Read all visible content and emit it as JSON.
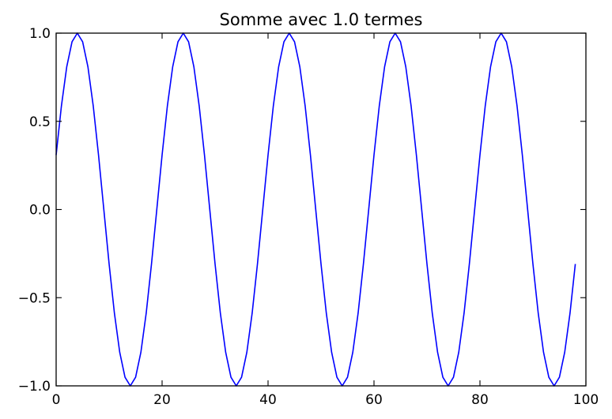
{
  "chart_data": {
    "type": "line",
    "title": "Somme avec 1.0 termes",
    "xlabel": "",
    "ylabel": "",
    "xlim": [
      0,
      100
    ],
    "ylim": [
      -1.0,
      1.0
    ],
    "grid": false,
    "x_ticks": [
      0,
      20,
      40,
      60,
      80,
      100
    ],
    "x_tick_labels": [
      "0",
      "20",
      "40",
      "60",
      "80",
      "100"
    ],
    "y_ticks": [
      -1.0,
      -0.5,
      0.0,
      0.5,
      1.0
    ],
    "y_tick_labels": [
      "−1.0",
      "−0.5",
      "0.0",
      "0.5",
      "1.0"
    ],
    "series": [
      {
        "color": "#0000ff",
        "x": [
          0,
          1,
          2,
          3,
          4,
          5,
          6,
          7,
          8,
          9,
          10,
          11,
          12,
          13,
          14,
          15,
          16,
          17,
          18,
          19,
          20,
          21,
          22,
          23,
          24,
          25,
          26,
          27,
          28,
          29,
          30,
          31,
          32,
          33,
          34,
          35,
          36,
          37,
          38,
          39,
          40,
          41,
          42,
          43,
          44,
          45,
          46,
          47,
          48,
          49,
          50,
          51,
          52,
          53,
          54,
          55,
          56,
          57,
          58,
          59,
          60,
          61,
          62,
          63,
          64,
          65,
          66,
          67,
          68,
          69,
          70,
          71,
          72,
          73,
          74,
          75,
          76,
          77,
          78,
          79,
          80,
          81,
          82,
          83,
          84,
          85,
          86,
          87,
          88,
          89,
          90,
          91,
          92,
          93,
          94,
          95,
          96,
          97,
          98
        ],
        "y": [
          0.309,
          0.588,
          0.809,
          0.951,
          1.0,
          0.951,
          0.809,
          0.588,
          0.309,
          0.0,
          -0.309,
          -0.588,
          -0.809,
          -0.951,
          -1.0,
          -0.951,
          -0.809,
          -0.588,
          -0.309,
          0.0,
          0.309,
          0.588,
          0.809,
          0.951,
          1.0,
          0.951,
          0.809,
          0.588,
          0.309,
          0.0,
          -0.309,
          -0.588,
          -0.809,
          -0.951,
          -1.0,
          -0.951,
          -0.809,
          -0.588,
          -0.309,
          0.0,
          0.309,
          0.588,
          0.809,
          0.951,
          1.0,
          0.951,
          0.809,
          0.588,
          0.309,
          0.0,
          -0.309,
          -0.588,
          -0.809,
          -0.951,
          -1.0,
          -0.951,
          -0.809,
          -0.588,
          -0.309,
          0.0,
          0.309,
          0.588,
          0.809,
          0.951,
          1.0,
          0.951,
          0.809,
          0.588,
          0.309,
          0.0,
          -0.309,
          -0.588,
          -0.809,
          -0.951,
          -1.0,
          -0.951,
          -0.809,
          -0.588,
          -0.309,
          0.0,
          0.309,
          0.588,
          0.809,
          0.951,
          1.0,
          0.951,
          0.809,
          0.588,
          0.309,
          0.0,
          -0.309,
          -0.588,
          -0.809,
          -0.951,
          -1.0,
          -0.951,
          -0.809,
          -0.588,
          -0.309
        ]
      }
    ]
  }
}
